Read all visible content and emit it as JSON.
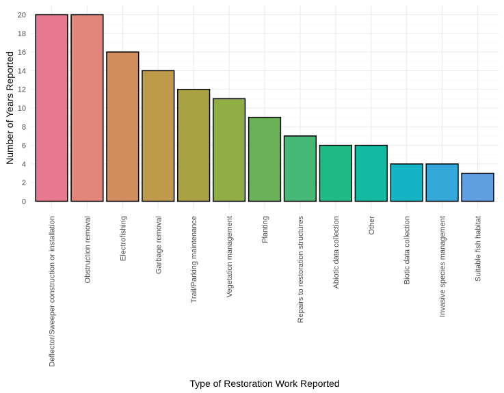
{
  "chart_data": {
    "type": "bar",
    "title": "",
    "xlabel": "Type of Restoration Work Reported",
    "ylabel": "Number of Years Reported",
    "ylim": [
      0,
      20
    ],
    "yticks": [
      0,
      2,
      4,
      6,
      8,
      10,
      12,
      14,
      16,
      18,
      20
    ],
    "grid": true,
    "legend": "none",
    "categories": [
      "Deflector/Sweeper construction or installation",
      "Obstruction removal",
      "Electrofishing",
      "Garbage removal",
      "Trail/Parking maintenance",
      "Vegetation management",
      "Planting",
      "Repairs to restoration structures",
      "Abiotic data collection",
      "Other",
      "Biotic data collection",
      "Invasive species management",
      "Suitable fish habitat"
    ],
    "values": [
      20,
      20,
      16,
      14,
      12,
      11,
      9,
      7,
      6,
      6,
      4,
      4,
      3
    ],
    "colors": [
      "#E7788F",
      "#E1857A",
      "#D28D5E",
      "#BE9A4A",
      "#A9A143",
      "#8FAC45",
      "#69B058",
      "#44B874",
      "#1FBB87",
      "#14B9A2",
      "#15B4C4",
      "#33A8D8",
      "#609FE2"
    ]
  }
}
